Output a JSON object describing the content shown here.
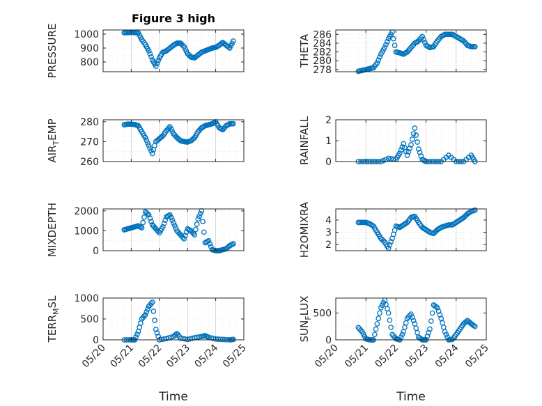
{
  "chart_data": [
    {
      "type": "scatter",
      "title": "Figure 3 high",
      "ylabel": "PRESSURE",
      "xlim": [
        "05/20",
        "05/25"
      ],
      "ylim": [
        730,
        1030
      ],
      "yticks": [
        "800",
        "900",
        "1000"
      ],
      "grid": true,
      "x": [
        "05/20 18:00",
        "05/20 21:00",
        "05/21 00:00",
        "05/21 03:00",
        "05/21 06:00",
        "05/21 09:00",
        "05/21 12:00",
        "05/21 15:00",
        "05/21 18:00",
        "05/21 21:00",
        "05/22 00:00",
        "05/22 03:00",
        "05/22 06:00",
        "05/22 09:00",
        "05/22 12:00",
        "05/22 15:00",
        "05/22 18:00",
        "05/22 21:00",
        "05/23 00:00",
        "05/23 03:00",
        "05/23 06:00",
        "05/23 09:00",
        "05/23 12:00",
        "05/23 15:00",
        "05/23 18:00",
        "05/23 21:00",
        "05/24 00:00",
        "05/24 03:00",
        "05/24 06:00",
        "05/24 09:00",
        "05/24 12:00",
        "05/24 15:00"
      ],
      "y": [
        1010,
        1012,
        1012,
        1011,
        1009,
        960,
        925,
        880,
        815,
        770,
        830,
        870,
        880,
        900,
        920,
        935,
        935,
        910,
        860,
        835,
        830,
        850,
        870,
        880,
        890,
        900,
        905,
        920,
        940,
        920,
        900,
        950
      ]
    },
    {
      "type": "scatter",
      "ylabel": "THETA",
      "xlim": [
        "05/20",
        "05/25"
      ],
      "ylim": [
        277.5,
        287
      ],
      "yticks": [
        "278",
        "280",
        "282",
        "284",
        "286"
      ],
      "grid": true,
      "x": [
        "05/20 18:00",
        "05/20 21:00",
        "05/21 00:00",
        "05/21 03:00",
        "05/21 06:00",
        "05/21 09:00",
        "05/21 12:00",
        "05/21 15:00",
        "05/21 18:00",
        "05/21 21:00",
        "05/22 00:00",
        "05/22 03:00",
        "05/22 06:00",
        "05/22 09:00",
        "05/22 12:00",
        "05/22 15:00",
        "05/22 18:00",
        "05/22 21:00",
        "05/23 00:00",
        "05/23 03:00",
        "05/23 06:00",
        "05/23 09:00",
        "05/23 12:00",
        "05/23 15:00",
        "05/23 18:00",
        "05/23 21:00",
        "05/24 00:00",
        "05/24 03:00",
        "05/24 06:00",
        "05/24 09:00",
        "05/24 12:00",
        "05/24 15:00"
      ],
      "y": [
        277.6,
        277.8,
        278.0,
        278.2,
        278.4,
        279.5,
        281.5,
        283.0,
        285.0,
        286.5,
        282.0,
        281.8,
        281.5,
        282.0,
        283.0,
        284.0,
        284.5,
        285.5,
        283.5,
        283.0,
        283.2,
        284.5,
        285.5,
        286.0,
        286.0,
        286.0,
        285.5,
        285.0,
        284.5,
        283.5,
        283.2,
        283.2
      ]
    },
    {
      "type": "scatter",
      "ylabel": "AIR_TEMP",
      "xlim": [
        "05/20",
        "05/25"
      ],
      "ylim": [
        260,
        281
      ],
      "yticks": [
        "260",
        "270",
        "280"
      ],
      "grid": true,
      "x": [
        "05/20 18:00",
        "05/20 21:00",
        "05/21 00:00",
        "05/21 03:00",
        "05/21 06:00",
        "05/21 09:00",
        "05/21 12:00",
        "05/21 15:00",
        "05/21 18:00",
        "05/21 21:00",
        "05/22 00:00",
        "05/22 03:00",
        "05/22 06:00",
        "05/22 09:00",
        "05/22 12:00",
        "05/22 15:00",
        "05/22 18:00",
        "05/22 21:00",
        "05/23 00:00",
        "05/23 03:00",
        "05/23 06:00",
        "05/23 09:00",
        "05/23 12:00",
        "05/23 15:00",
        "05/23 18:00",
        "05/23 21:00",
        "05/24 00:00",
        "05/24 03:00",
        "05/24 06:00",
        "05/24 09:00",
        "05/24 12:00",
        "05/24 15:00"
      ],
      "y": [
        278.5,
        278.8,
        278.8,
        278.6,
        278.0,
        275.0,
        272.0,
        268.0,
        264.0,
        270.0,
        271.5,
        273.0,
        275.5,
        277.5,
        274.0,
        272.0,
        270.5,
        270.0,
        269.8,
        270.5,
        272.0,
        275.0,
        277.0,
        278.0,
        278.5,
        279.0,
        280.0,
        277.0,
        276.0,
        278.0,
        279.0,
        279.0
      ]
    },
    {
      "type": "scatter",
      "ylabel": "RAINFALL",
      "xlim": [
        "05/20",
        "05/25"
      ],
      "ylim": [
        0,
        2
      ],
      "yticks": [
        "0",
        "1",
        "2"
      ],
      "grid": true,
      "x": [
        "05/20 18:00",
        "05/21 00:00",
        "05/21 06:00",
        "05/21 12:00",
        "05/21 18:00",
        "05/22 00:00",
        "05/22 03:00",
        "05/22 06:00",
        "05/22 09:00",
        "05/22 12:00",
        "05/22 15:00",
        "05/22 18:00",
        "05/22 21:00",
        "05/23 00:00",
        "05/23 06:00",
        "05/23 12:00",
        "05/23 18:00",
        "05/24 00:00",
        "05/24 06:00",
        "05/24 12:00",
        "05/24 15:00"
      ],
      "y": [
        0,
        0,
        0,
        0,
        0.15,
        0.1,
        0.4,
        0.85,
        0.3,
        0.8,
        1.6,
        0.6,
        0.1,
        0,
        0,
        0,
        0.3,
        0,
        0,
        0.3,
        0
      ]
    },
    {
      "type": "scatter",
      "ylabel": "MIXDEPTH",
      "xlim": [
        "05/20",
        "05/25"
      ],
      "ylim": [
        0,
        2100
      ],
      "yticks": [
        "0",
        "1000",
        "2000"
      ],
      "grid": true,
      "x": [
        "05/20 18:00",
        "05/20 21:00",
        "05/21 00:00",
        "05/21 03:00",
        "05/21 06:00",
        "05/21 09:00",
        "05/21 12:00",
        "05/21 15:00",
        "05/21 18:00",
        "05/21 21:00",
        "05/22 00:00",
        "05/22 03:00",
        "05/22 06:00",
        "05/22 09:00",
        "05/22 12:00",
        "05/22 15:00",
        "05/22 18:00",
        "05/22 21:00",
        "05/23 00:00",
        "05/23 03:00",
        "05/23 06:00",
        "05/23 09:00",
        "05/23 12:00",
        "05/23 15:00",
        "05/23 18:00",
        "05/23 21:00",
        "05/24 00:00",
        "05/24 03:00",
        "05/24 06:00",
        "05/24 09:00",
        "05/24 12:00",
        "05/24 15:00"
      ],
      "y": [
        1050,
        1100,
        1150,
        1200,
        1250,
        1150,
        1950,
        1800,
        1300,
        1100,
        900,
        1200,
        1700,
        1800,
        1400,
        1000,
        800,
        600,
        1100,
        1000,
        800,
        1600,
        2000,
        400,
        500,
        50,
        0,
        0,
        50,
        100,
        250,
        350
      ]
    },
    {
      "type": "scatter",
      "ylabel": "H2OMIXRA",
      "xlim": [
        "05/20",
        "05/25"
      ],
      "ylim": [
        1.5,
        4.9
      ],
      "yticks": [
        "2",
        "3",
        "4"
      ],
      "grid": true,
      "x": [
        "05/20 18:00",
        "05/20 21:00",
        "05/21 00:00",
        "05/21 03:00",
        "05/21 06:00",
        "05/21 09:00",
        "05/21 12:00",
        "05/21 15:00",
        "05/21 18:00",
        "05/21 21:00",
        "05/22 00:00",
        "05/22 03:00",
        "05/22 06:00",
        "05/22 09:00",
        "05/22 12:00",
        "05/22 15:00",
        "05/22 18:00",
        "05/22 21:00",
        "05/23 00:00",
        "05/23 03:00",
        "05/23 06:00",
        "05/23 09:00",
        "05/23 12:00",
        "05/23 15:00",
        "05/23 18:00",
        "05/23 21:00",
        "05/24 00:00",
        "05/24 03:00",
        "05/24 06:00",
        "05/24 09:00",
        "05/24 12:00",
        "05/24 15:00"
      ],
      "y": [
        3.8,
        3.8,
        3.8,
        3.7,
        3.5,
        3.0,
        2.5,
        2.2,
        1.7,
        2.5,
        3.5,
        3.4,
        3.6,
        3.8,
        4.2,
        4.3,
        3.8,
        3.4,
        3.2,
        3.0,
        2.9,
        3.2,
        3.4,
        3.5,
        3.6,
        3.6,
        3.8,
        4.0,
        4.2,
        4.5,
        4.7,
        4.8
      ]
    },
    {
      "type": "scatter",
      "ylabel": "TERR_MSL",
      "xlim": [
        "05/20",
        "05/25"
      ],
      "ylim": [
        0,
        1000
      ],
      "yticks": [
        "0",
        "500",
        "1000"
      ],
      "xticks": [
        "05/20",
        "05/21",
        "05/22",
        "05/23",
        "05/24",
        "05/25"
      ],
      "xlabel": "Time",
      "grid": true,
      "x": [
        "05/20 18:00",
        "05/21 00:00",
        "05/21 03:00",
        "05/21 06:00",
        "05/21 09:00",
        "05/21 12:00",
        "05/21 15:00",
        "05/21 18:00",
        "05/21 21:00",
        "05/22 00:00",
        "05/22 06:00",
        "05/22 12:00",
        "05/22 15:00",
        "05/22 18:00",
        "05/23 00:00",
        "05/23 06:00",
        "05/23 12:00",
        "05/23 15:00",
        "05/23 18:00",
        "05/24 00:00",
        "05/24 06:00",
        "05/24 12:00",
        "05/24 15:00"
      ],
      "y": [
        0,
        0,
        0,
        200,
        500,
        600,
        800,
        900,
        250,
        0,
        30,
        80,
        150,
        40,
        10,
        50,
        80,
        100,
        60,
        20,
        10,
        0,
        10
      ]
    },
    {
      "type": "scatter",
      "ylabel": "SUN_FLUX",
      "xlim": [
        "05/20",
        "05/25"
      ],
      "ylim": [
        0,
        780
      ],
      "yticks": [
        "0",
        "500"
      ],
      "xticks": [
        "05/20",
        "05/21",
        "05/22",
        "05/23",
        "05/24",
        "05/25"
      ],
      "xlabel": "Time",
      "grid": true,
      "x": [
        "05/20 18:00",
        "05/20 21:00",
        "05/21 00:00",
        "05/21 03:00",
        "05/21 06:00",
        "05/21 09:00",
        "05/21 12:00",
        "05/21 15:00",
        "05/21 18:00",
        "05/21 21:00",
        "05/22 00:00",
        "05/22 03:00",
        "05/22 06:00",
        "05/22 09:00",
        "05/22 12:00",
        "05/22 15:00",
        "05/22 18:00",
        "05/22 21:00",
        "05/23 00:00",
        "05/23 03:00",
        "05/23 06:00",
        "05/23 09:00",
        "05/23 12:00",
        "05/23 15:00",
        "05/23 18:00",
        "05/23 21:00",
        "05/24 00:00",
        "05/24 03:00",
        "05/24 06:00",
        "05/24 09:00",
        "05/24 12:00",
        "05/24 15:00"
      ],
      "y": [
        230,
        150,
        20,
        0,
        0,
        300,
        600,
        740,
        500,
        100,
        20,
        0,
        150,
        400,
        480,
        300,
        50,
        0,
        0,
        200,
        650,
        600,
        400,
        150,
        0,
        10,
        100,
        200,
        300,
        360,
        300,
        250
      ]
    }
  ],
  "colors": {
    "marker": "#0072BD",
    "axis": "#262626",
    "grid": "#d9d9d9",
    "background": "#ffffff"
  }
}
